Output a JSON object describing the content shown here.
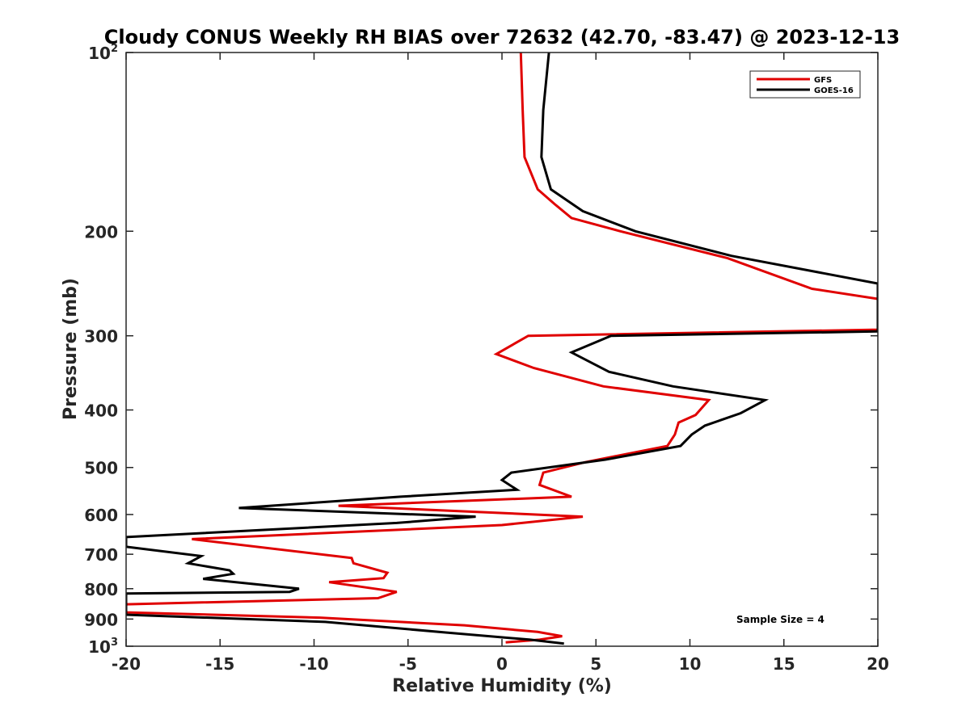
{
  "chart_data": {
    "type": "line",
    "title": "Cloudy CONUS Weekly RH BIAS over 72632 (42.70, -83.47) @ 2023-12-13",
    "xlabel": "Relative Humidity (%)",
    "ylabel": "Pressure (mb)",
    "xlim": [
      -20,
      20
    ],
    "ylim": [
      100,
      1000
    ],
    "y_scale": "log",
    "y_reversed": true,
    "grid": false,
    "legend_position": "top-right",
    "x_ticks": [
      -20,
      -15,
      -10,
      -5,
      0,
      5,
      10,
      15,
      20
    ],
    "x_tick_labels": [
      "-20",
      "-15",
      "-10",
      "-5",
      "0",
      "5",
      "10",
      "15",
      "20"
    ],
    "y_ticks": [
      100,
      200,
      300,
      400,
      500,
      600,
      700,
      800,
      900,
      1000
    ],
    "y_tick_labels": [
      {
        "base": "10",
        "exp": "2"
      },
      {
        "base": "200",
        "exp": ""
      },
      {
        "base": "300",
        "exp": ""
      },
      {
        "base": "400",
        "exp": ""
      },
      {
        "base": "500",
        "exp": ""
      },
      {
        "base": "600",
        "exp": ""
      },
      {
        "base": "700",
        "exp": ""
      },
      {
        "base": "800",
        "exp": ""
      },
      {
        "base": "900",
        "exp": ""
      },
      {
        "base": "10",
        "exp": "3"
      }
    ],
    "annotation": "Sample Size = 4",
    "series": [
      {
        "name": "GFS",
        "color": "#e00000",
        "points": [
          [
            1.0,
            100
          ],
          [
            1.1,
            125
          ],
          [
            1.2,
            150
          ],
          [
            1.9,
            170
          ],
          [
            2.8,
            180
          ],
          [
            3.7,
            190
          ],
          [
            6.3,
            200
          ],
          [
            12.0,
            222
          ],
          [
            16.5,
            250
          ],
          [
            20.0,
            260
          ],
          [
            20.0,
            293
          ],
          [
            1.4,
            300
          ],
          [
            -0.3,
            322
          ],
          [
            1.7,
            340
          ],
          [
            5.4,
            365
          ],
          [
            11.0,
            385
          ],
          [
            10.3,
            408
          ],
          [
            9.4,
            420
          ],
          [
            9.2,
            440
          ],
          [
            8.8,
            460
          ],
          [
            4.4,
            490
          ],
          [
            2.2,
            510
          ],
          [
            2.0,
            535
          ],
          [
            3.7,
            560
          ],
          [
            -8.7,
            580
          ],
          [
            4.3,
            605
          ],
          [
            0.0,
            625
          ],
          [
            -16.5,
            660
          ],
          [
            -8.0,
            710
          ],
          [
            -7.9,
            725
          ],
          [
            -6.1,
            752
          ],
          [
            -6.3,
            768
          ],
          [
            -9.2,
            780
          ],
          [
            -5.6,
            810
          ],
          [
            -6.6,
            830
          ],
          [
            -20.0,
            850
          ],
          [
            -20.0,
            877
          ],
          [
            -9.7,
            895
          ],
          [
            -2.0,
            922
          ],
          [
            1.9,
            946
          ],
          [
            3.2,
            962
          ],
          [
            2.0,
            975
          ],
          [
            0.2,
            985
          ]
        ]
      },
      {
        "name": "GOES-16",
        "color": "#000000",
        "points": [
          [
            2.5,
            100
          ],
          [
            2.2,
            125
          ],
          [
            2.1,
            150
          ],
          [
            2.6,
            170
          ],
          [
            4.3,
            185
          ],
          [
            7.1,
            200
          ],
          [
            12.2,
            220
          ],
          [
            20.0,
            245
          ],
          [
            20.0,
            295
          ],
          [
            5.8,
            300
          ],
          [
            3.7,
            320
          ],
          [
            5.7,
            345
          ],
          [
            9.1,
            365
          ],
          [
            14.0,
            385
          ],
          [
            12.7,
            405
          ],
          [
            10.8,
            425
          ],
          [
            10.1,
            440
          ],
          [
            9.5,
            460
          ],
          [
            5.5,
            485
          ],
          [
            0.5,
            510
          ],
          [
            0.0,
            525
          ],
          [
            0.8,
            545
          ],
          [
            -5.4,
            560
          ],
          [
            -14.0,
            585
          ],
          [
            -1.4,
            605
          ],
          [
            -5.6,
            620
          ],
          [
            -20.0,
            655
          ],
          [
            -20.0,
            680
          ],
          [
            -16.0,
            705
          ],
          [
            -16.7,
            725
          ],
          [
            -14.5,
            745
          ],
          [
            -14.3,
            755
          ],
          [
            -15.9,
            770
          ],
          [
            -10.8,
            800
          ],
          [
            -11.3,
            810
          ],
          [
            -20.0,
            815
          ],
          [
            -20.0,
            885
          ],
          [
            -9.4,
            910
          ],
          [
            -3.0,
            948
          ],
          [
            1.5,
            975
          ],
          [
            3.3,
            990
          ]
        ]
      }
    ]
  }
}
